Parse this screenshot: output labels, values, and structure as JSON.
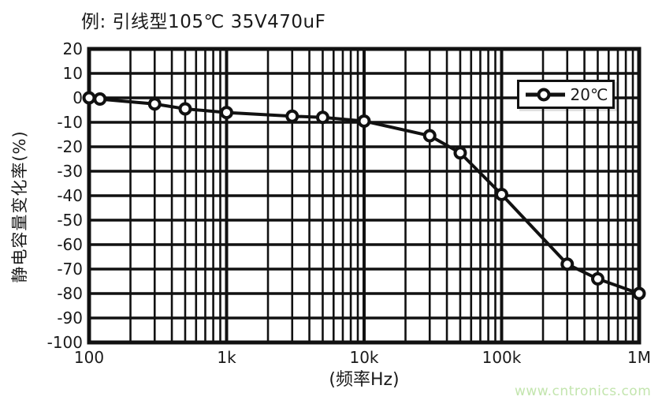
{
  "page": {
    "background": "#ffffff",
    "ink_color": "#1a1a1a",
    "watermark": {
      "text": "www.cntronics.com",
      "color": "#c3e5ae"
    }
  },
  "chart_data": {
    "type": "line",
    "title": "例: 引线型105℃ 35V470uF",
    "xlabel": "(频率Hz)",
    "ylabel": "静电容量变化率(%)",
    "x_scale": "log",
    "x_range": [
      100,
      1000000
    ],
    "x_tick_values": [
      100,
      1000,
      10000,
      100000,
      1000000
    ],
    "x_tick_labels": [
      "100",
      "1k",
      "10k",
      "100k",
      "1M"
    ],
    "y_range": [
      -100,
      20
    ],
    "y_tick_step": 10,
    "y_tick_values": [
      20,
      10,
      0,
      -10,
      -20,
      -30,
      -40,
      -50,
      -60,
      -70,
      -80,
      -90,
      -100
    ],
    "y_tick_labels": [
      "20",
      "10",
      "0",
      "-10",
      "-20",
      "-30",
      "-40",
      "-50",
      "-60",
      "-70",
      "-80",
      "-90",
      "-100"
    ],
    "grid": "on",
    "grid_color": "#111111",
    "legend": {
      "position": "top-right-inside",
      "entries": [
        {
          "label": "20℃",
          "marker": "circle-on-line",
          "color": "#111111"
        }
      ]
    },
    "series": [
      {
        "name": "20℃",
        "x": [
          100,
          120,
          300,
          500,
          1000,
          3000,
          5000,
          10000,
          30000,
          50000,
          100000,
          300000,
          500000,
          1000000
        ],
        "y": [
          0,
          -0.5,
          -2.5,
          -4.5,
          -6,
          -7.5,
          -8,
          -9.5,
          -15.5,
          -22.5,
          -39.5,
          -68,
          -74,
          -80
        ]
      }
    ],
    "line_color": "#111111",
    "marker": {
      "shape": "circle",
      "fill": "#ffffff",
      "stroke": "#111111"
    }
  }
}
